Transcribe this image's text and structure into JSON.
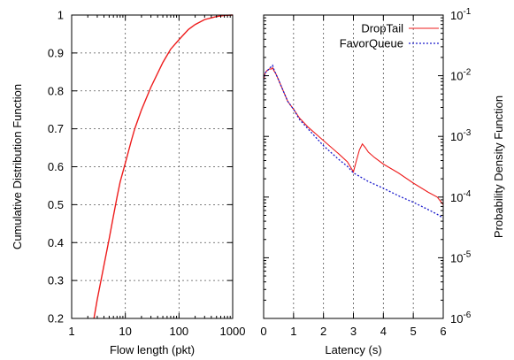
{
  "chart_data": [
    {
      "type": "line",
      "xlabel": "Flow length (pkt)",
      "ylabel": "Cumulative Distribution Function",
      "xscale": "log",
      "xlim": [
        1,
        1000
      ],
      "ylim": [
        0.2,
        1
      ],
      "grid": "dotted",
      "xticks": [
        "1",
        "10",
        "100",
        "1000"
      ],
      "xtick_values": [
        1,
        10,
        100,
        1000
      ],
      "yticks": [
        "0.2",
        "0.3",
        "0.4",
        "0.5",
        "0.6",
        "0.7",
        "0.8",
        "0.9",
        "1"
      ],
      "ytick_values": [
        0.2,
        0.3,
        0.4,
        0.5,
        0.6,
        0.7,
        0.8,
        0.9,
        1.0
      ],
      "series": [
        {
          "color": "#ee1c1c",
          "x": [
            2.6,
            3,
            4,
            5,
            6,
            7,
            8,
            10,
            13,
            15,
            20,
            30,
            50,
            70,
            100,
            150,
            200,
            300,
            500,
            700,
            1000
          ],
          "y": [
            0.2,
            0.25,
            0.34,
            0.41,
            0.47,
            0.52,
            0.56,
            0.61,
            0.67,
            0.7,
            0.75,
            0.81,
            0.875,
            0.91,
            0.935,
            0.962,
            0.975,
            0.988,
            0.996,
            0.999,
            1.0
          ]
        }
      ]
    },
    {
      "type": "line",
      "xlabel": "Latency (s)",
      "ylabel": "Probability Density Function",
      "yscale": "log",
      "yaxis_side": "right",
      "xlim": [
        0,
        6
      ],
      "ylim": [
        1e-06,
        0.1
      ],
      "grid": "dotted vertical",
      "legend_position": "top-right",
      "xticks": [
        "0",
        "1",
        "2",
        "3",
        "4",
        "5",
        "6"
      ],
      "xtick_values": [
        0,
        1,
        2,
        3,
        4,
        5,
        6
      ],
      "ytick_values": [
        1e-06,
        1e-05,
        0.0001,
        0.001,
        0.01,
        0.1
      ],
      "ytick_labels": [
        {
          "base": "10",
          "exp": "-6"
        },
        {
          "base": "10",
          "exp": "-5"
        },
        {
          "base": "10",
          "exp": "-4"
        },
        {
          "base": "10",
          "exp": "-3"
        },
        {
          "base": "10",
          "exp": "-2"
        },
        {
          "base": "10",
          "exp": "-1"
        }
      ],
      "series": [
        {
          "name": "DropTail",
          "color": "#ee1c1c",
          "dash": "solid",
          "x": [
            0,
            0.05,
            0.1,
            0.15,
            0.2,
            0.25,
            0.3,
            0.35,
            0.4,
            0.5,
            0.6,
            0.7,
            0.8,
            1.0,
            1.2,
            1.5,
            2.0,
            2.5,
            2.8,
            3.0,
            3.1,
            3.2,
            3.3,
            3.4,
            3.5,
            3.7,
            4.0,
            4.5,
            5.0,
            5.5,
            5.8,
            6.0
          ],
          "y": [
            0.0085,
            0.011,
            0.012,
            0.0125,
            0.013,
            0.0128,
            0.0135,
            0.012,
            0.011,
            0.0085,
            0.0065,
            0.005,
            0.0038,
            0.0028,
            0.002,
            0.0014,
            0.00085,
            0.00052,
            0.00038,
            0.00026,
            0.0004,
            0.0006,
            0.00075,
            0.00065,
            0.00055,
            0.00045,
            0.00035,
            0.00025,
            0.00017,
            0.00012,
            0.0001,
            7.5e-05
          ]
        },
        {
          "name": "FavorQueue",
          "color": "#1a1acc",
          "dash": "dotted",
          "x": [
            0,
            0.05,
            0.1,
            0.15,
            0.2,
            0.25,
            0.3,
            0.35,
            0.4,
            0.5,
            0.6,
            0.7,
            0.8,
            1.0,
            1.2,
            1.5,
            2.0,
            2.5,
            2.8,
            3.0,
            3.2,
            3.5,
            4.0,
            4.5,
            5.0,
            5.5,
            5.8,
            6.0
          ],
          "y": [
            0.0085,
            0.011,
            0.012,
            0.0125,
            0.0135,
            0.014,
            0.0148,
            0.0125,
            0.011,
            0.0085,
            0.0065,
            0.005,
            0.0038,
            0.0028,
            0.0019,
            0.0013,
            0.0007,
            0.00042,
            0.00032,
            0.00025,
            0.00022,
            0.00018,
            0.00014,
            0.000105,
            8.2e-05,
            6.2e-05,
            5.2e-05,
            4.5e-05
          ]
        }
      ]
    }
  ]
}
